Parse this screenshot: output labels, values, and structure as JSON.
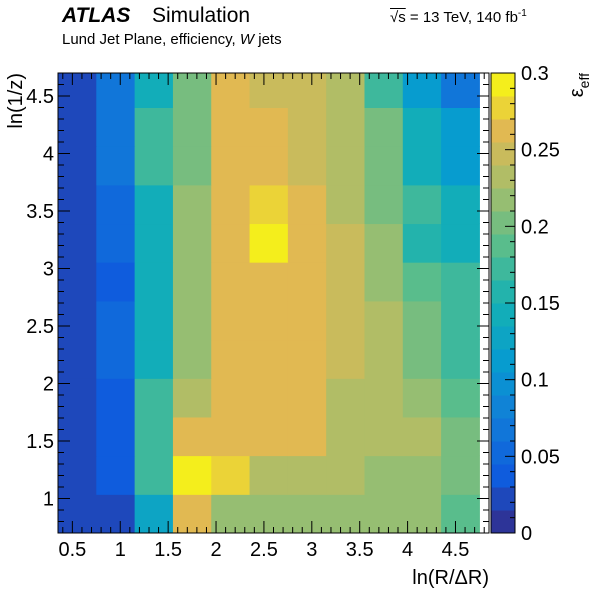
{
  "header": {
    "experiment": "ATLAS",
    "label": "Simulation",
    "energy_prefix": "√s",
    "energy_text": " = 13 TeV, 140 fb",
    "lumi_exponent": "-1",
    "subtitle_prefix": "Lund Jet Plane, efficiency, ",
    "subtitle_italic": "W",
    "subtitle_suffix": " jets"
  },
  "chart_data": {
    "type": "heatmap",
    "xlabel": "ln(R/ΔR)",
    "ylabel": "ln(1/z)",
    "zlabel": "ε_eff",
    "xlim": [
      0.35,
      4.85
    ],
    "ylim": [
      0.7,
      4.7
    ],
    "zlim": [
      0,
      0.3
    ],
    "x_edges": [
      0.35,
      0.75,
      1.15,
      1.55,
      1.95,
      2.35,
      2.75,
      3.15,
      3.55,
      3.95,
      4.35,
      4.75
    ],
    "y_edges": [
      0.7,
      1.036,
      1.373,
      1.709,
      2.045,
      2.382,
      2.718,
      3.055,
      3.391,
      3.727,
      4.064,
      4.4,
      4.7
    ],
    "x_ticks": [
      0.5,
      1,
      1.5,
      2,
      2.5,
      3,
      3.5,
      4,
      4.5
    ],
    "x_tick_labels": [
      "0.5",
      "1",
      "1.5",
      "2",
      "2.5",
      "3",
      "3.5",
      "4",
      "4.5"
    ],
    "y_ticks": [
      1,
      1.5,
      2,
      2.5,
      3,
      3.5,
      4,
      4.5
    ],
    "y_tick_labels": [
      "1",
      "1.5",
      "2",
      "2.5",
      "3",
      "3.5",
      "4",
      "4.5"
    ],
    "z_ticks": [
      0,
      0.05,
      0.1,
      0.15,
      0.2,
      0.25,
      0.3
    ],
    "z_tick_labels": [
      "0",
      "0.05",
      "0.1",
      "0.15",
      "0.2",
      "0.25",
      "0.3"
    ],
    "values_note_rows": "rows from bottom (y bin 1) to top (y bin 12), columns x bin 1..11",
    "values": [
      [
        0.015,
        0.015,
        0.13,
        0.26,
        0.22,
        0.22,
        0.22,
        0.21,
        0.21,
        0.21,
        0.18
      ],
      [
        0.015,
        0.04,
        0.17,
        0.295,
        0.275,
        0.225,
        0.225,
        0.225,
        0.215,
        0.215,
        0.205
      ],
      [
        0.015,
        0.04,
        0.17,
        0.255,
        0.255,
        0.255,
        0.255,
        0.225,
        0.225,
        0.225,
        0.2
      ],
      [
        0.015,
        0.04,
        0.17,
        0.23,
        0.255,
        0.255,
        0.255,
        0.225,
        0.225,
        0.21,
        0.185
      ],
      [
        0.015,
        0.055,
        0.145,
        0.215,
        0.255,
        0.265,
        0.265,
        0.245,
        0.225,
        0.205,
        0.17
      ],
      [
        0.015,
        0.055,
        0.145,
        0.215,
        0.255,
        0.265,
        0.265,
        0.245,
        0.225,
        0.205,
        0.17
      ],
      [
        0.015,
        0.035,
        0.145,
        0.215,
        0.255,
        0.26,
        0.26,
        0.245,
        0.215,
        0.185,
        0.17
      ],
      [
        0.015,
        0.05,
        0.145,
        0.215,
        0.255,
        0.285,
        0.26,
        0.245,
        0.215,
        0.155,
        0.14
      ],
      [
        0.015,
        0.05,
        0.145,
        0.21,
        0.255,
        0.27,
        0.265,
        0.235,
        0.205,
        0.165,
        0.135
      ],
      [
        0.015,
        0.065,
        0.165,
        0.2,
        0.255,
        0.265,
        0.245,
        0.235,
        0.205,
        0.145,
        0.11
      ],
      [
        0.015,
        0.06,
        0.165,
        0.2,
        0.255,
        0.265,
        0.245,
        0.235,
        0.205,
        0.145,
        0.11
      ],
      [
        0.015,
        0.06,
        0.135,
        0.205,
        0.255,
        0.245,
        0.245,
        0.23,
        0.165,
        0.115,
        0.065
      ]
    ]
  }
}
